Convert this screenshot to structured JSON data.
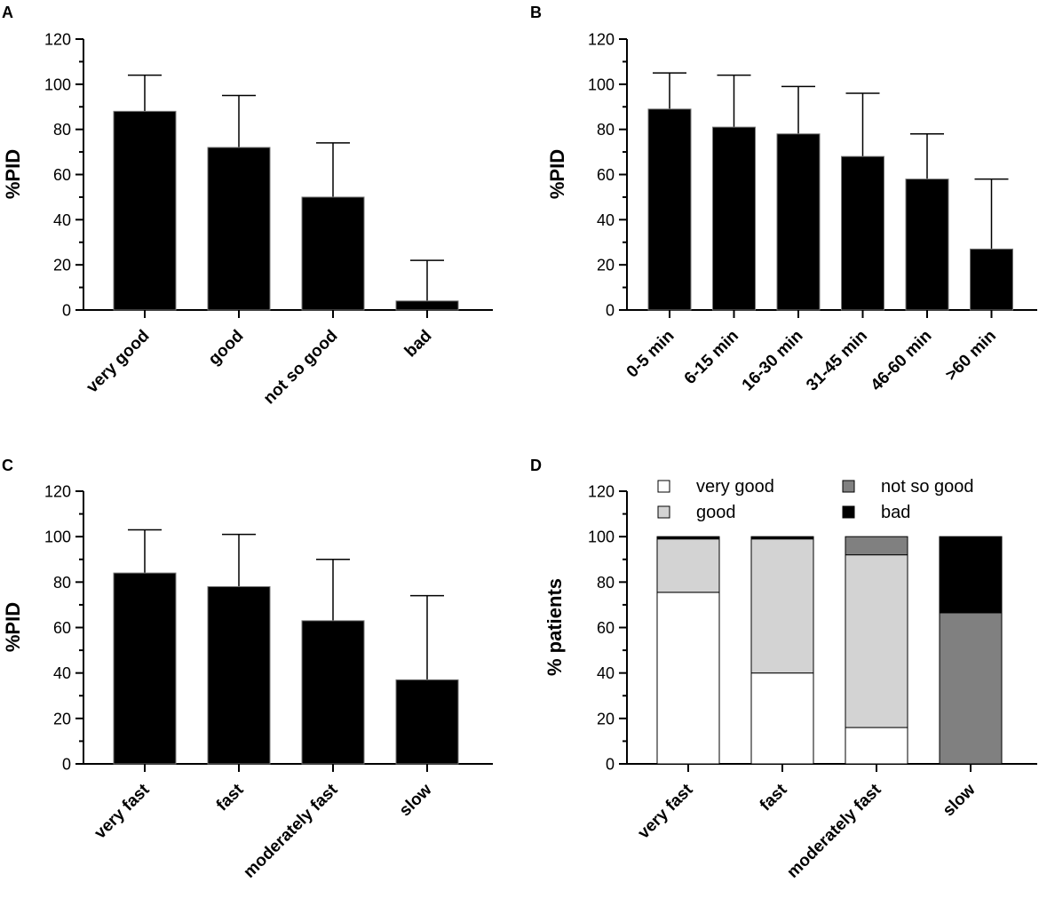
{
  "figure": {
    "background": "#ffffff",
    "bar_color": "#000000"
  },
  "chart_data": [
    {
      "panel": "A",
      "type": "bar",
      "ylabel": "%PID",
      "ylim": [
        0,
        120
      ],
      "yticks": [
        0,
        20,
        40,
        60,
        80,
        100,
        120
      ],
      "categories": [
        "very good",
        "good",
        "not so good",
        "bad"
      ],
      "values": [
        88,
        72,
        50,
        4
      ],
      "error_upper": [
        104,
        95,
        74,
        22
      ]
    },
    {
      "panel": "B",
      "type": "bar",
      "ylabel": "%PID",
      "ylim": [
        0,
        120
      ],
      "yticks": [
        0,
        20,
        40,
        60,
        80,
        100,
        120
      ],
      "categories": [
        "0-5 min",
        "6-15 min",
        "16-30 min",
        "31-45 min",
        "46-60 min",
        ">60 min"
      ],
      "values": [
        89,
        81,
        78,
        68,
        58,
        27
      ],
      "error_upper": [
        105,
        104,
        99,
        96,
        78,
        58
      ]
    },
    {
      "panel": "C",
      "type": "bar",
      "ylabel": "%PID",
      "ylim": [
        0,
        120
      ],
      "yticks": [
        0,
        20,
        40,
        60,
        80,
        100,
        120
      ],
      "categories": [
        "very fast",
        "fast",
        "moderately fast",
        "slow"
      ],
      "values": [
        84,
        78,
        63,
        37
      ],
      "error_upper": [
        103,
        101,
        90,
        74
      ]
    },
    {
      "panel": "D",
      "type": "stacked-bar",
      "ylabel": "% patients",
      "ylim": [
        0,
        120
      ],
      "yticks": [
        0,
        20,
        40,
        60,
        80,
        100,
        120
      ],
      "categories": [
        "very fast",
        "fast",
        "moderately fast",
        "slow"
      ],
      "legend_position": "top",
      "series": [
        {
          "name": "very good",
          "color": "#ffffff",
          "values": [
            75.5,
            40,
            16,
            0
          ]
        },
        {
          "name": "good",
          "color": "#d3d3d3",
          "values": [
            23.5,
            59,
            76,
            0
          ]
        },
        {
          "name": "not so good",
          "color": "#808080",
          "values": [
            0,
            0,
            8,
            66.5
          ]
        },
        {
          "name": "bad",
          "color": "#000000",
          "values": [
            1,
            1,
            0,
            33.5
          ]
        }
      ]
    }
  ]
}
